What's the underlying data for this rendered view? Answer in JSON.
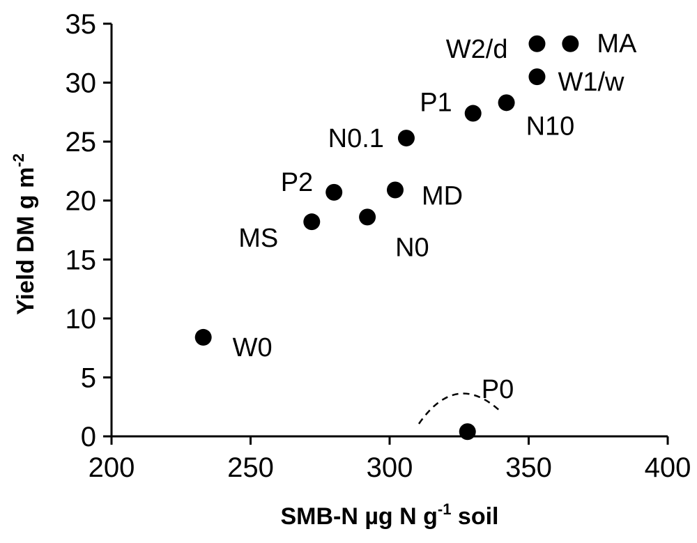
{
  "chart_data": {
    "type": "scatter",
    "xlabel": {
      "main": "SMB-N µg N g",
      "sup": "-1",
      "rest": " soil"
    },
    "ylabel": {
      "main": "Yield DM g m",
      "sup": "-2"
    },
    "xlim": [
      200,
      400
    ],
    "ylim": [
      0,
      35
    ],
    "xticks": [
      "200",
      "250",
      "300",
      "350",
      "400"
    ],
    "yticks": [
      "0",
      "5",
      "10",
      "15",
      "20",
      "25",
      "30",
      "35"
    ],
    "grid": false,
    "points": [
      {
        "label": "W0",
        "x": 233,
        "y": 8.4
      },
      {
        "label": "MS",
        "x": 272,
        "y": 18.2
      },
      {
        "label": "P2",
        "x": 280,
        "y": 20.7
      },
      {
        "label": "N0",
        "x": 292,
        "y": 18.6
      },
      {
        "label": "MD",
        "x": 302,
        "y": 20.9
      },
      {
        "label": "N0.1",
        "x": 306,
        "y": 25.3
      },
      {
        "label": "P0",
        "x": 328,
        "y": 0.4
      },
      {
        "label": "P1",
        "x": 330,
        "y": 27.4
      },
      {
        "label": "N10",
        "x": 342,
        "y": 28.3
      },
      {
        "label": "W1/w",
        "x": 353,
        "y": 30.5
      },
      {
        "label": "W2/d",
        "x": 353,
        "y": 33.3
      },
      {
        "label": "MA",
        "x": 365,
        "y": 33.3
      }
    ]
  }
}
